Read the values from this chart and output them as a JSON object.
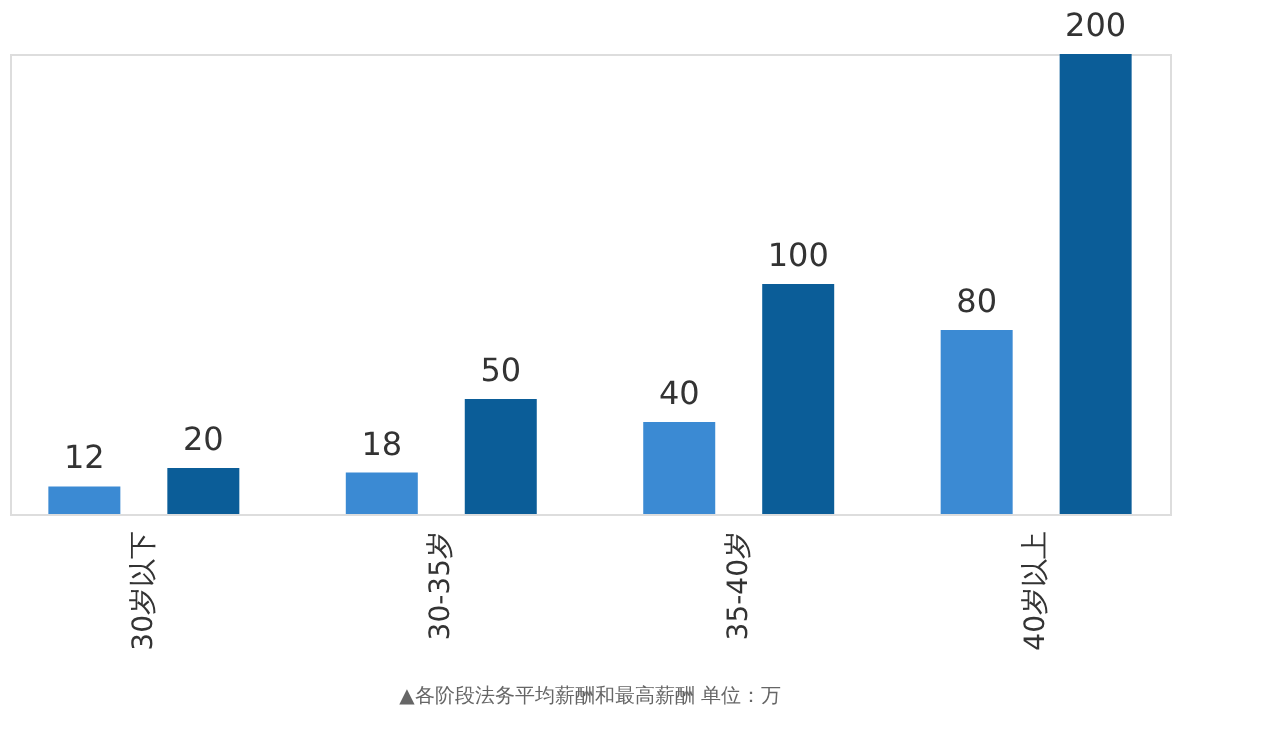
{
  "chart_data": {
    "type": "bar",
    "categories": [
      "30岁以下",
      "30-35岁",
      "35-40岁",
      "40岁以上"
    ],
    "series": [
      {
        "color": "#3b8ad3",
        "values": [
          12,
          18,
          40,
          80
        ]
      },
      {
        "color": "#0b5d98",
        "values": [
          20,
          50,
          100,
          200
        ]
      }
    ],
    "data_labels": true,
    "grid": false,
    "legend": false,
    "annotations": [
      "▲各阶段法务平均薪酬和最高薪酬 单位：万"
    ]
  }
}
